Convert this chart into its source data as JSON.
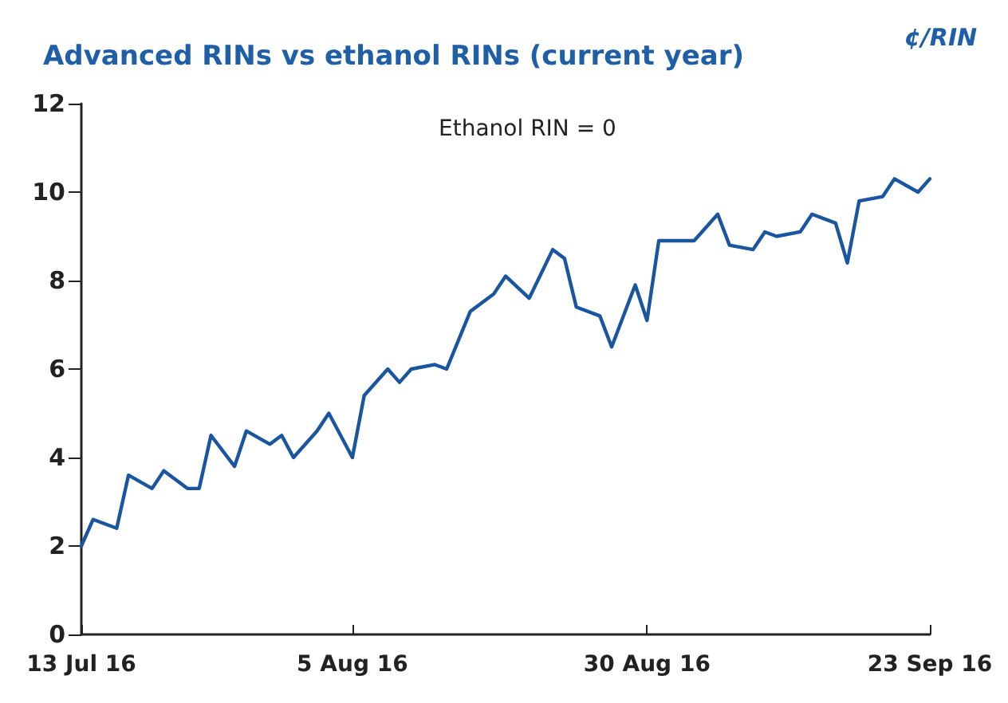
{
  "chart_data": {
    "type": "line",
    "title": "Advanced RINs vs ethanol RINs (current year)",
    "ylabel": "¢/RIN",
    "annotations": [
      "Ethanol RIN = 0"
    ],
    "x": [
      "2016-07-13",
      "2016-07-14",
      "2016-07-16",
      "2016-07-17",
      "2016-07-19",
      "2016-07-20",
      "2016-07-22",
      "2016-07-23",
      "2016-07-24",
      "2016-07-26",
      "2016-07-27",
      "2016-07-29",
      "2016-07-30",
      "2016-07-31",
      "2016-08-02",
      "2016-08-03",
      "2016-08-05",
      "2016-08-06",
      "2016-08-08",
      "2016-08-09",
      "2016-08-10",
      "2016-08-12",
      "2016-08-13",
      "2016-08-15",
      "2016-08-16",
      "2016-08-17",
      "2016-08-18",
      "2016-08-20",
      "2016-08-22",
      "2016-08-23",
      "2016-08-24",
      "2016-08-26",
      "2016-08-27",
      "2016-08-29",
      "2016-08-30",
      "2016-08-31",
      "2016-09-02",
      "2016-09-03",
      "2016-09-05",
      "2016-09-06",
      "2016-09-08",
      "2016-09-09",
      "2016-09-10",
      "2016-09-12",
      "2016-09-13",
      "2016-09-15",
      "2016-09-16",
      "2016-09-17",
      "2016-09-19",
      "2016-09-20",
      "2016-09-22",
      "2016-09-23"
    ],
    "series": [
      {
        "color": "#1a56a0",
        "values": [
          2.0,
          2.6,
          2.4,
          3.6,
          3.3,
          3.7,
          3.3,
          3.3,
          4.5,
          3.8,
          4.6,
          4.3,
          4.5,
          4.0,
          4.6,
          5.0,
          4.0,
          5.4,
          6.0,
          5.7,
          6.0,
          6.1,
          6.0,
          7.3,
          7.5,
          7.7,
          8.1,
          7.6,
          8.7,
          8.5,
          7.4,
          7.2,
          6.5,
          7.9,
          7.1,
          8.9,
          8.9,
          8.9,
          9.5,
          8.8,
          8.7,
          9.1,
          9.0,
          9.1,
          9.5,
          9.3,
          8.4,
          9.8,
          9.9,
          10.3,
          10.0,
          10.3
        ]
      }
    ],
    "xlim": [
      "2016-07-13",
      "2016-09-23"
    ],
    "xticks": [
      {
        "value": "2016-07-13",
        "label": "13 Jul 16"
      },
      {
        "value": "2016-08-05",
        "label": "5 Aug 16"
      },
      {
        "value": "2016-08-30",
        "label": "30 Aug 16"
      },
      {
        "value": "2016-09-23",
        "label": "23 Sep 16"
      }
    ],
    "ylim": [
      0,
      12
    ],
    "yticks": [
      0,
      2,
      4,
      6,
      8,
      10,
      12
    ],
    "grid": false,
    "marker": "none",
    "line_style": "solid"
  }
}
